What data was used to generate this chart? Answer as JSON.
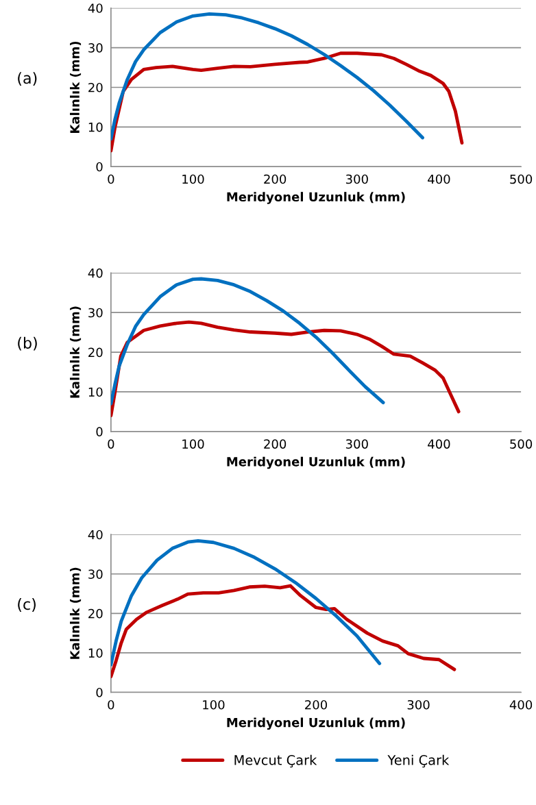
{
  "chart_data": [
    {
      "type": "line",
      "annotations": [
        "(a)"
      ],
      "xlabel": "Meridyonel Uzunluk (mm)",
      "ylabel": "Kalınlık (mm)",
      "xlim": [
        0,
        500
      ],
      "xticks": [
        0,
        100,
        200,
        300,
        400,
        500
      ],
      "ylim": [
        0,
        40
      ],
      "yticks": [
        0,
        10,
        20,
        30,
        40
      ],
      "grid": "y",
      "legend": false,
      "series": [
        {
          "color": "#c00000",
          "x": [
            0,
            5,
            15,
            25,
            40,
            55,
            75,
            100,
            110,
            130,
            150,
            170,
            200,
            230,
            240,
            260,
            280,
            300,
            330,
            345,
            360,
            375,
            390,
            405,
            412,
            420,
            428
          ],
          "values": [
            4,
            10,
            19,
            22,
            24.5,
            25,
            25.3,
            24.5,
            24.3,
            24.8,
            25.3,
            25.2,
            25.8,
            26.3,
            26.4,
            27.3,
            28.6,
            28.6,
            28.2,
            27.3,
            25.8,
            24.2,
            23,
            21,
            19,
            14,
            6
          ]
        },
        {
          "color": "#0070c0",
          "x": [
            0,
            5,
            10,
            20,
            30,
            40,
            60,
            80,
            100,
            120,
            140,
            160,
            180,
            200,
            220,
            240,
            260,
            280,
            300,
            320,
            340,
            360,
            380
          ],
          "values": [
            7,
            12,
            16,
            22,
            26.5,
            29.5,
            33.8,
            36.5,
            38,
            38.5,
            38.3,
            37.5,
            36.3,
            34.8,
            33,
            30.8,
            28.3,
            25.5,
            22.5,
            19.2,
            15.5,
            11.5,
            7.3
          ]
        }
      ]
    },
    {
      "type": "line",
      "annotations": [
        "(b)"
      ],
      "xlabel": "Meridyonel Uzunluk (mm)",
      "ylabel": "Kalınlık (mm)",
      "xlim": [
        0,
        500
      ],
      "xticks": [
        0,
        100,
        200,
        300,
        400,
        500
      ],
      "ylim": [
        0,
        40
      ],
      "yticks": [
        0,
        10,
        20,
        30,
        40
      ],
      "grid": "y",
      "legend": false,
      "series": [
        {
          "color": "#c00000",
          "x": [
            0,
            5,
            12,
            20,
            40,
            60,
            80,
            95,
            110,
            130,
            150,
            170,
            200,
            220,
            240,
            260,
            280,
            300,
            315,
            330,
            345,
            365,
            380,
            395,
            405,
            415,
            424
          ],
          "values": [
            4,
            10,
            19,
            22.5,
            25.5,
            26.6,
            27.3,
            27.6,
            27.3,
            26.3,
            25.6,
            25.1,
            24.8,
            24.5,
            25.1,
            25.5,
            25.4,
            24.5,
            23.3,
            21.5,
            19.5,
            19,
            17.3,
            15.5,
            13.5,
            9,
            5
          ]
        },
        {
          "color": "#0070c0",
          "x": [
            0,
            5,
            10,
            20,
            30,
            40,
            60,
            80,
            100,
            110,
            130,
            150,
            170,
            190,
            210,
            230,
            250,
            270,
            290,
            310,
            332
          ],
          "values": [
            7,
            12,
            16.5,
            22,
            26.5,
            29.5,
            34,
            37,
            38.4,
            38.5,
            38.1,
            37,
            35.3,
            33,
            30.4,
            27.3,
            23.8,
            19.8,
            15.5,
            11.3,
            7.3
          ]
        }
      ]
    },
    {
      "type": "line",
      "annotations": [
        "(c)"
      ],
      "xlabel": "Meridyonel Uzunluk (mm)",
      "ylabel": "Kalınlık (mm)",
      "xlim": [
        0,
        400
      ],
      "xticks": [
        0,
        100,
        200,
        300,
        400
      ],
      "ylim": [
        0,
        40
      ],
      "yticks": [
        0,
        10,
        20,
        30,
        40
      ],
      "grid": "y",
      "legend": "bottom",
      "series": [
        {
          "name": "Mevcut Çark",
          "color": "#c00000",
          "x": [
            0,
            5,
            10,
            15,
            25,
            35,
            50,
            65,
            75,
            90,
            105,
            120,
            135,
            150,
            165,
            175,
            185,
            200,
            210,
            218,
            230,
            250,
            265,
            280,
            290,
            305,
            320,
            335
          ],
          "values": [
            4,
            8,
            12.5,
            16,
            18.5,
            20.3,
            22,
            23.6,
            24.9,
            25.2,
            25.2,
            25.8,
            26.7,
            26.9,
            26.5,
            27,
            24.5,
            21.5,
            21,
            21.2,
            18.5,
            15,
            13,
            11.8,
            9.8,
            8.6,
            8.3,
            5.8
          ]
        },
        {
          "name": "Yeni Çark",
          "color": "#0070c0",
          "x": [
            0,
            5,
            10,
            20,
            30,
            45,
            60,
            75,
            85,
            100,
            120,
            140,
            160,
            180,
            200,
            220,
            240,
            262
          ],
          "values": [
            7,
            13,
            18,
            24.5,
            29,
            33.5,
            36.5,
            38.1,
            38.4,
            38,
            36.5,
            34.2,
            31.3,
            27.8,
            23.8,
            19.3,
            14.3,
            7.3
          ]
        }
      ]
    }
  ]
}
